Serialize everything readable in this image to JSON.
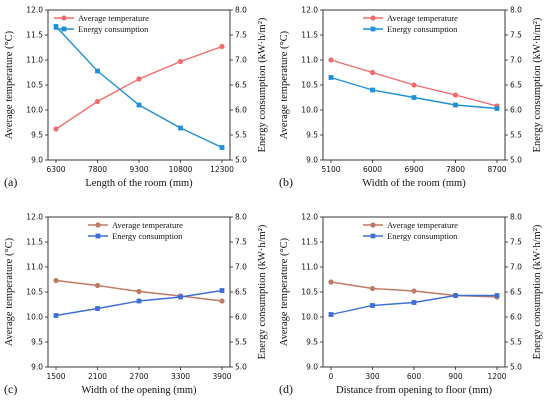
{
  "chart_data": [
    {
      "type": "line",
      "panel_label": "(a)",
      "xlabel": "Length of the room (mm)",
      "ylabel_left": "Average temperature (°C)",
      "ylabel_right": "Energy consumption (kW·h/m²)",
      "categories": [
        "6300",
        "7800",
        "9300",
        "10800",
        "12300"
      ],
      "ylim_left": [
        9.0,
        12.0
      ],
      "ylim_right": [
        5.0,
        8.0
      ],
      "left_ticks": [
        "9.0",
        "9.5",
        "10.0",
        "10.5",
        "11.0",
        "11.5",
        "12.0"
      ],
      "right_ticks": [
        "5.0",
        "5.5",
        "6.0",
        "6.5",
        "7.0",
        "7.5",
        "8.0"
      ],
      "legend_position": "top-left",
      "series": [
        {
          "name": "Average temperature",
          "axis": "left",
          "marker": "circle",
          "color": "#f26b6b",
          "values": [
            9.62,
            10.17,
            10.62,
            10.97,
            11.27
          ]
        },
        {
          "name": "Energy consumption",
          "axis": "right",
          "marker": "square",
          "color": "#1e90d8",
          "values": [
            7.67,
            6.78,
            6.1,
            5.64,
            5.25
          ]
        }
      ]
    },
    {
      "type": "line",
      "panel_label": "(b)",
      "xlabel": "Width of the room (mm)",
      "ylabel_left": "Average temperature (°C)",
      "ylabel_right": "Energy consumption (kW·h/m²)",
      "categories": [
        "5100",
        "6000",
        "6900",
        "7800",
        "8700"
      ],
      "ylim_left": [
        9.0,
        12.0
      ],
      "ylim_right": [
        5.0,
        8.0
      ],
      "left_ticks": [
        "9.0",
        "9.5",
        "10.0",
        "10.5",
        "11.0",
        "11.5",
        "12.0"
      ],
      "right_ticks": [
        "5.0",
        "5.5",
        "6.0",
        "6.5",
        "7.0",
        "7.5",
        "8.0"
      ],
      "legend_position": "top-center",
      "series": [
        {
          "name": "Average temperature",
          "axis": "left",
          "marker": "circle",
          "color": "#f26b6b",
          "values": [
            11.0,
            10.75,
            10.5,
            10.3,
            10.08
          ]
        },
        {
          "name": "Energy consumption",
          "axis": "right",
          "marker": "square",
          "color": "#1e90d8",
          "values": [
            6.65,
            6.4,
            6.25,
            6.1,
            6.03
          ]
        }
      ]
    },
    {
      "type": "line",
      "panel_label": "(c)",
      "xlabel": "Width of the opening (mm)",
      "ylabel_left": "Average temperature (°C)",
      "ylabel_right": "Energy consumption (kW·h/m²)",
      "categories": [
        "1500",
        "2100",
        "2700",
        "3300",
        "3900"
      ],
      "ylim_left": [
        9.0,
        12.0
      ],
      "ylim_right": [
        5.0,
        8.0
      ],
      "left_ticks": [
        "9.0",
        "9.5",
        "10.0",
        "10.5",
        "11.0",
        "11.5",
        "12.0"
      ],
      "right_ticks": [
        "5.0",
        "5.5",
        "6.0",
        "6.5",
        "7.0",
        "7.5",
        "8.0"
      ],
      "legend_position": "top-center",
      "series": [
        {
          "name": "Average temperature",
          "axis": "left",
          "marker": "circle",
          "color": "#c07a62",
          "values": [
            10.73,
            10.63,
            10.51,
            10.42,
            10.32
          ]
        },
        {
          "name": "Energy consumption",
          "axis": "right",
          "marker": "square",
          "color": "#3f6fd6",
          "values": [
            6.03,
            6.17,
            6.32,
            6.4,
            6.53
          ]
        }
      ]
    },
    {
      "type": "line",
      "panel_label": "(d)",
      "xlabel": "Distance from opening to floor (mm)",
      "ylabel_left": "Average temperature (°C)",
      "ylabel_right": "Energy consumption (kW·h/m²)",
      "categories": [
        "0",
        "300",
        "600",
        "900",
        "1200"
      ],
      "ylim_left": [
        9.0,
        12.0
      ],
      "ylim_right": [
        5.0,
        8.0
      ],
      "left_ticks": [
        "9.0",
        "9.5",
        "10.0",
        "10.5",
        "11.0",
        "11.5",
        "12.0"
      ],
      "right_ticks": [
        "5.0",
        "5.5",
        "6.0",
        "6.5",
        "7.0",
        "7.5",
        "8.0"
      ],
      "legend_position": "top-center",
      "series": [
        {
          "name": "Average temperature",
          "axis": "left",
          "marker": "circle",
          "color": "#c07a62",
          "values": [
            10.7,
            10.57,
            10.52,
            10.43,
            10.4
          ]
        },
        {
          "name": "Energy consumption",
          "axis": "right",
          "marker": "square",
          "color": "#3f6fd6",
          "values": [
            6.05,
            6.23,
            6.29,
            6.43,
            6.43
          ]
        }
      ]
    }
  ]
}
